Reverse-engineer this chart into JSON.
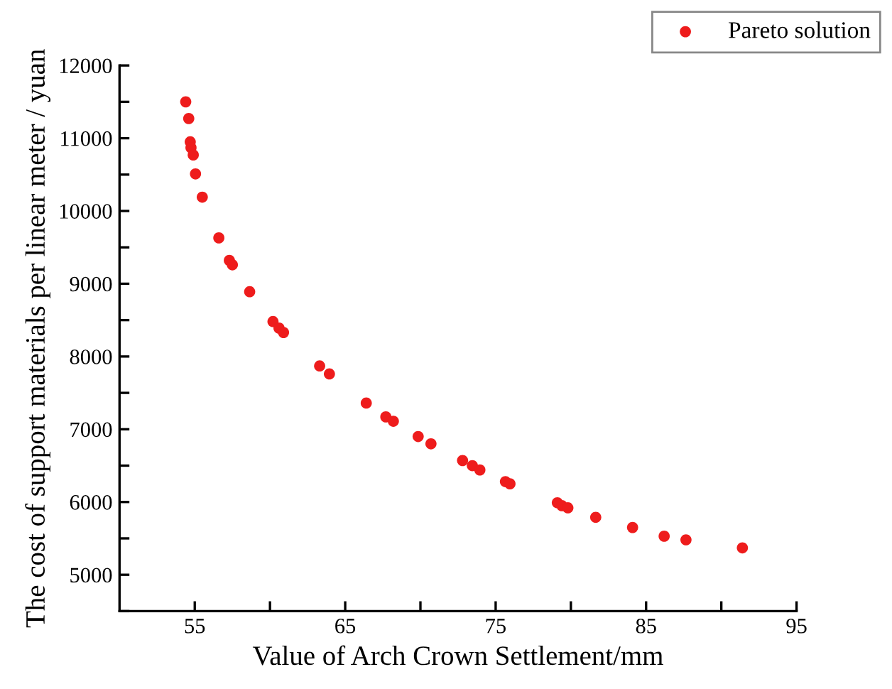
{
  "chart_data": {
    "type": "scatter",
    "xlabel": "Value of Arch Crown Settlement/mm",
    "ylabel": "The cost of support materials per linear meter / yuan",
    "xlim": [
      50,
      95
    ],
    "xticks": [
      55,
      {
        "value": 60,
        "label": null
      },
      65,
      {
        "value": 70,
        "label": null
      },
      75,
      {
        "value": 80,
        "label": null
      },
      85,
      {
        "value": 90,
        "label": null
      },
      95
    ],
    "ylim": [
      4500,
      12000
    ],
    "yticks": [
      {
        "value": 4500,
        "label": null
      },
      5000,
      {
        "value": 5500,
        "label": null
      },
      6000,
      {
        "value": 6500,
        "label": null
      },
      7000,
      {
        "value": 7500,
        "label": null
      },
      8000,
      {
        "value": 8500,
        "label": null
      },
      9000,
      {
        "value": 9500,
        "label": null
      },
      10000,
      {
        "value": 10500,
        "label": null
      },
      11000,
      {
        "value": 11500,
        "label": null
      },
      12000
    ],
    "marker": "circle",
    "legend": "top right",
    "grid": false,
    "series": [
      {
        "name": "Pareto solution",
        "color": "#ee1c1c",
        "x": [
          54.4,
          54.6,
          54.7,
          54.75,
          54.9,
          55.05,
          55.5,
          56.6,
          57.3,
          57.5,
          58.65,
          60.2,
          60.6,
          60.9,
          63.3,
          63.95,
          66.4,
          67.7,
          68.2,
          69.85,
          70.7,
          72.8,
          73.45,
          73.95,
          75.65,
          75.95,
          79.1,
          79.4,
          79.8,
          81.65,
          84.1,
          86.2,
          87.65,
          91.4
        ],
        "values": [
          11500,
          11270,
          10950,
          10870,
          10770,
          10510,
          10190,
          9630,
          9320,
          9260,
          8890,
          8480,
          8390,
          8330,
          7870,
          7760,
          7360,
          7170,
          7110,
          6900,
          6800,
          6570,
          6500,
          6440,
          6280,
          6250,
          5990,
          5950,
          5920,
          5790,
          5650,
          5530,
          5480,
          5370
        ]
      }
    ]
  }
}
